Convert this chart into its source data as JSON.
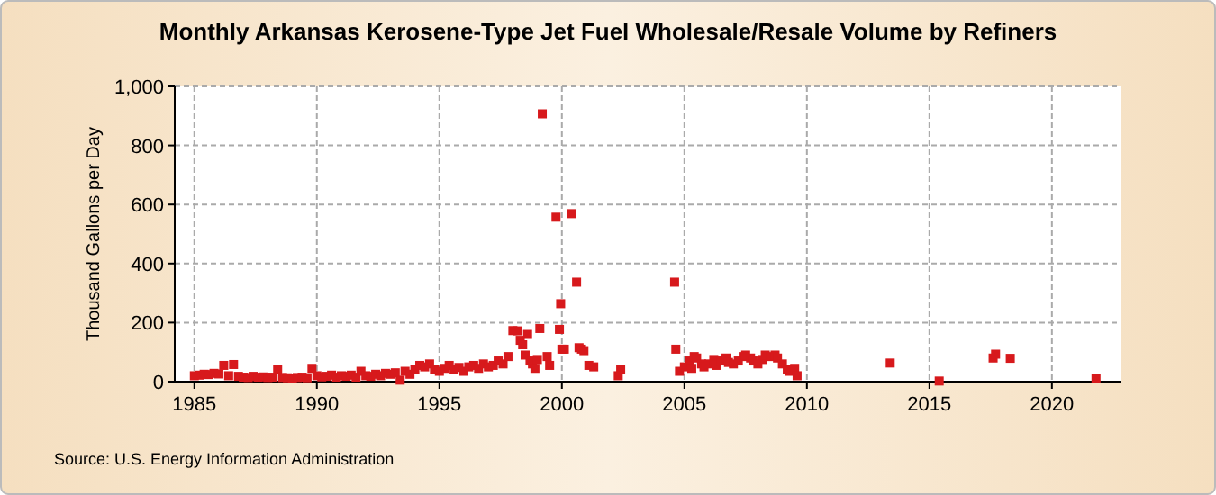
{
  "chart_data": {
    "type": "scatter",
    "title": "Monthly Arkansas Kerosene-Type Jet Fuel Wholesale/Resale Volume by Refiners",
    "ylabel": "Thousand Gallons per Day",
    "annotations": [
      "Source: U.S. Energy Information Administration"
    ],
    "series": [
      {
        "color": "#d7191c",
        "x": [
          1985.0,
          1985.2,
          1985.4,
          1985.6,
          1985.8,
          1986.0,
          1986.2,
          1986.4,
          1986.6,
          1986.8,
          1987.0,
          1987.2,
          1987.4,
          1987.6,
          1987.8,
          1988.0,
          1988.2,
          1988.4,
          1988.6,
          1988.8,
          1989.0,
          1989.2,
          1989.4,
          1989.6,
          1989.8,
          1990.0,
          1990.2,
          1990.4,
          1990.6,
          1990.8,
          1991.0,
          1991.2,
          1991.4,
          1991.6,
          1991.8,
          1992.0,
          1992.2,
          1992.4,
          1992.6,
          1992.8,
          1993.0,
          1993.2,
          1993.4,
          1993.6,
          1993.8,
          1994.0,
          1994.2,
          1994.4,
          1994.6,
          1994.8,
          1995.0,
          1995.2,
          1995.4,
          1995.6,
          1995.8,
          1996.0,
          1996.2,
          1996.4,
          1996.6,
          1996.8,
          1997.0,
          1997.2,
          1997.4,
          1997.6,
          1997.8,
          1998.0,
          1998.2,
          1998.3,
          1998.4,
          1998.5,
          1998.6,
          1998.7,
          1998.8,
          1998.9,
          1999.0,
          1999.1,
          1999.2,
          1999.4,
          1999.5,
          1999.76,
          1999.9,
          1999.95,
          2000.0,
          2000.1,
          2000.4,
          2000.6,
          2000.7,
          2000.8,
          2000.9,
          2001.1,
          2001.3,
          2002.3,
          2002.4,
          2004.6,
          2004.65,
          2004.8,
          2005.0,
          2005.2,
          2005.3,
          2005.4,
          2005.5,
          2005.7,
          2005.8,
          2006.0,
          2006.2,
          2006.3,
          2006.5,
          2006.7,
          2006.8,
          2007.0,
          2007.2,
          2007.4,
          2007.5,
          2007.7,
          2007.8,
          2008.0,
          2008.2,
          2008.3,
          2008.5,
          2008.7,
          2008.8,
          2009.0,
          2009.2,
          2009.3,
          2009.5,
          2009.6,
          2013.4,
          2015.4,
          2017.6,
          2017.7,
          2018.3,
          2021.8
        ],
        "values": [
          20,
          22,
          25,
          24,
          28,
          26,
          55,
          20,
          58,
          18,
          15,
          14,
          18,
          15,
          16,
          14,
          15,
          40,
          14,
          13,
          12,
          14,
          15,
          13,
          45,
          20,
          16,
          18,
          22,
          15,
          20,
          18,
          22,
          15,
          35,
          20,
          18,
          25,
          20,
          28,
          25,
          30,
          5,
          35,
          25,
          40,
          55,
          50,
          60,
          40,
          35,
          45,
          55,
          40,
          48,
          35,
          50,
          55,
          45,
          60,
          50,
          55,
          70,
          60,
          85,
          173,
          172,
          140,
          125,
          90,
          160,
          70,
          60,
          45,
          75,
          180,
          907,
          85,
          55,
          557,
          177,
          264,
          110,
          110,
          569,
          337,
          115,
          110,
          105,
          55,
          50,
          20,
          40,
          337,
          110,
          35,
          50,
          70,
          45,
          85,
          80,
          60,
          50,
          60,
          75,
          55,
          70,
          80,
          65,
          60,
          70,
          85,
          90,
          80,
          70,
          60,
          75,
          90,
          85,
          90,
          80,
          60,
          40,
          35,
          45,
          20,
          63,
          2,
          80,
          93,
          79,
          12
        ]
      }
    ],
    "xlim": [
      1984.2,
      2022.8
    ],
    "xticks": [
      1985,
      1990,
      1995,
      2000,
      2005,
      2010,
      2015,
      2020
    ],
    "ylim": [
      0,
      1000
    ],
    "yticks": [
      0,
      200,
      400,
      600,
      800,
      {
        "value": 1000,
        "label": "1,000"
      }
    ],
    "grid": true,
    "marker": "square"
  }
}
